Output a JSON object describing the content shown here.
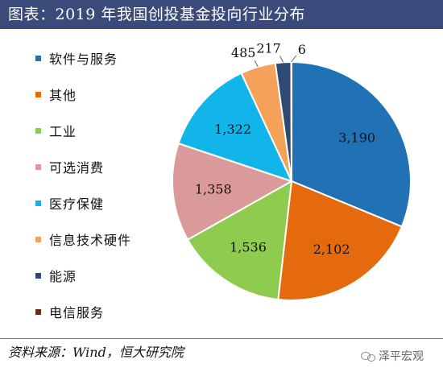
{
  "header": {
    "title": "图表：2019 年我国创投基金投向行业分布"
  },
  "chart_data": {
    "type": "pie",
    "title": "图表：2019 年我国创投基金投向行业分布",
    "legend_position": "left",
    "series": [
      {
        "name": "软件与服务",
        "value": 3190,
        "label": "3,190",
        "color": "#2171b5"
      },
      {
        "name": "其他",
        "value": 2102,
        "label": "2,102",
        "color": "#e56a0e"
      },
      {
        "name": "工业",
        "value": 1536,
        "label": "1,536",
        "color": "#8fcb4f"
      },
      {
        "name": "可选消费",
        "value": 1358,
        "label": "1,358",
        "color": "#d99a99"
      },
      {
        "name": "医疗保健",
        "value": 1322,
        "label": "1,322",
        "color": "#12b5ea"
      },
      {
        "name": "信息技术硬件",
        "value": 485,
        "label": "485",
        "color": "#f4a259"
      },
      {
        "name": "能源",
        "value": 217,
        "label": "217",
        "color": "#2e4a73"
      },
      {
        "name": "电信服务",
        "value": 6,
        "label": "6",
        "color": "#6b2a20"
      }
    ]
  },
  "footer": {
    "source": "资料来源：Wind，恒大研究院",
    "watermark": "泽平宏观"
  }
}
